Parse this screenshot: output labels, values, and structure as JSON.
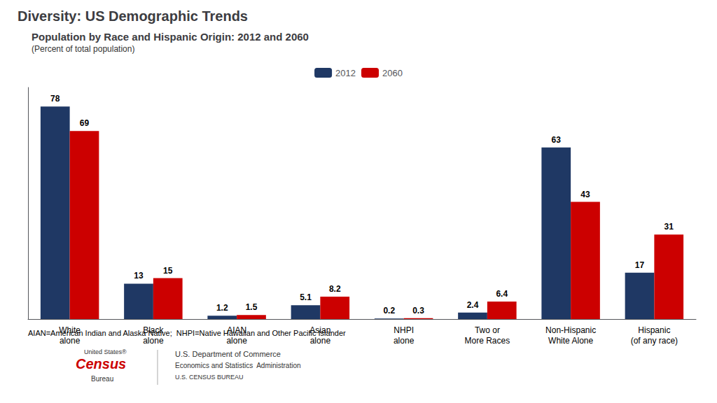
{
  "chart_data": {
    "type": "bar",
    "header": "Diversity: US Demographic Trends",
    "title": "Population by Race and Hispanic Origin: 2012 and 2060",
    "subtitle": "(Percent of total population)",
    "categories": [
      "White\nalone",
      "Black\nalone",
      "AIAN\nalone",
      "Asian\nalone",
      "NHPI\nalone",
      "Two or\nMore Races",
      "Non-Hispanic\nWhite Alone",
      "Hispanic\n(of any race)"
    ],
    "series": [
      {
        "name": "2012",
        "color": "#1f3864",
        "values": [
          78,
          13,
          1.2,
          5.1,
          0.2,
          2.4,
          63,
          17
        ]
      },
      {
        "name": "2060",
        "color": "#cc0000",
        "values": [
          69,
          15,
          1.5,
          8.2,
          0.3,
          6.4,
          43,
          31
        ]
      }
    ],
    "ylim": [
      0,
      85
    ],
    "yticks": [],
    "grid": false,
    "legend": "top",
    "data_labels": true,
    "tick_labels": "x",
    "footnote": "AIAN=American Indian and Alaska Native;  NHPI=Native Hawaiian and Other Pacific Islander",
    "annotations": [
      "United States®",
      "Census",
      "Bureau",
      "U.S. Department of Commerce",
      "Economics and Statistics  Administration",
      "U.S. CENSUS BUREAU"
    ]
  }
}
